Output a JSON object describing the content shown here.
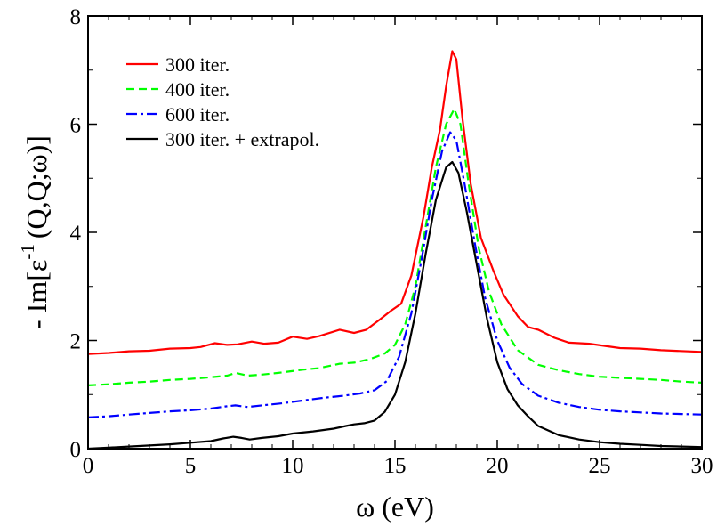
{
  "chart_data": {
    "type": "line",
    "title": "",
    "xlabel": "ω (eV)",
    "ylabel_parts": [
      "- Im[ε",
      "-1",
      "(Q,Q;ω)]"
    ],
    "xlim": [
      0,
      30
    ],
    "ylim": [
      0,
      8
    ],
    "x_ticks": [
      0,
      5,
      10,
      15,
      20,
      25,
      30
    ],
    "y_ticks": [
      0,
      2,
      4,
      6,
      8
    ],
    "grid": false,
    "legend_position": "top-left",
    "series": [
      {
        "name": "300 iter.",
        "color": "#ff0000",
        "dash": "solid",
        "points": [
          [
            0,
            1.75
          ],
          [
            1,
            1.77
          ],
          [
            2,
            1.8
          ],
          [
            3,
            1.81
          ],
          [
            4,
            1.85
          ],
          [
            5,
            1.86
          ],
          [
            5.5,
            1.88
          ],
          [
            6.2,
            1.95
          ],
          [
            6.8,
            1.92
          ],
          [
            7.3,
            1.93
          ],
          [
            8,
            1.98
          ],
          [
            8.6,
            1.94
          ],
          [
            9.3,
            1.96
          ],
          [
            10,
            2.07
          ],
          [
            10.7,
            2.03
          ],
          [
            11.3,
            2.08
          ],
          [
            12.3,
            2.2
          ],
          [
            13.0,
            2.14
          ],
          [
            13.6,
            2.2
          ],
          [
            14.3,
            2.4
          ],
          [
            14.8,
            2.55
          ],
          [
            15.3,
            2.68
          ],
          [
            15.8,
            3.2
          ],
          [
            16.4,
            4.3
          ],
          [
            16.8,
            5.2
          ],
          [
            17.2,
            5.9
          ],
          [
            17.5,
            6.7
          ],
          [
            17.8,
            7.35
          ],
          [
            18.0,
            7.2
          ],
          [
            18.3,
            6.1
          ],
          [
            18.7,
            4.9
          ],
          [
            19.2,
            3.9
          ],
          [
            19.8,
            3.3
          ],
          [
            20.3,
            2.85
          ],
          [
            21.0,
            2.45
          ],
          [
            21.5,
            2.25
          ],
          [
            22.0,
            2.2
          ],
          [
            22.8,
            2.05
          ],
          [
            23.5,
            1.96
          ],
          [
            24.5,
            1.94
          ],
          [
            26,
            1.86
          ],
          [
            27,
            1.85
          ],
          [
            28,
            1.82
          ],
          [
            30,
            1.79
          ]
        ]
      },
      {
        "name": "400 iter.",
        "color": "#00ff00",
        "dash": "dashed",
        "points": [
          [
            0,
            1.17
          ],
          [
            1,
            1.19
          ],
          [
            2,
            1.22
          ],
          [
            3,
            1.24
          ],
          [
            4,
            1.27
          ],
          [
            5,
            1.29
          ],
          [
            6,
            1.32
          ],
          [
            6.8,
            1.35
          ],
          [
            7.2,
            1.4
          ],
          [
            7.8,
            1.35
          ],
          [
            8.5,
            1.37
          ],
          [
            9.3,
            1.4
          ],
          [
            10.5,
            1.46
          ],
          [
            11.3,
            1.49
          ],
          [
            12.3,
            1.57
          ],
          [
            13.0,
            1.59
          ],
          [
            13.8,
            1.66
          ],
          [
            14.5,
            1.76
          ],
          [
            15.0,
            1.92
          ],
          [
            15.5,
            2.3
          ],
          [
            16.0,
            3.0
          ],
          [
            16.5,
            4.1
          ],
          [
            17.0,
            5.2
          ],
          [
            17.5,
            6.0
          ],
          [
            17.9,
            6.28
          ],
          [
            18.2,
            6.0
          ],
          [
            18.6,
            4.9
          ],
          [
            19.1,
            3.7
          ],
          [
            19.6,
            2.9
          ],
          [
            20.2,
            2.3
          ],
          [
            21.0,
            1.82
          ],
          [
            22.0,
            1.55
          ],
          [
            23.0,
            1.45
          ],
          [
            24,
            1.38
          ],
          [
            25,
            1.33
          ],
          [
            26,
            1.31
          ],
          [
            27,
            1.29
          ],
          [
            28,
            1.27
          ],
          [
            29,
            1.24
          ],
          [
            30,
            1.22
          ]
        ]
      },
      {
        "name": "600 iter.",
        "color": "#0000ff",
        "dash": "dashdot",
        "points": [
          [
            0,
            0.58
          ],
          [
            1,
            0.6
          ],
          [
            2,
            0.63
          ],
          [
            3,
            0.66
          ],
          [
            4,
            0.69
          ],
          [
            5,
            0.71
          ],
          [
            6,
            0.74
          ],
          [
            6.7,
            0.78
          ],
          [
            7.2,
            0.8
          ],
          [
            7.8,
            0.77
          ],
          [
            8.5,
            0.8
          ],
          [
            9.5,
            0.84
          ],
          [
            10.5,
            0.89
          ],
          [
            11.5,
            0.94
          ],
          [
            12.5,
            0.98
          ],
          [
            13.3,
            1.02
          ],
          [
            14.0,
            1.08
          ],
          [
            14.6,
            1.25
          ],
          [
            15.2,
            1.7
          ],
          [
            15.8,
            2.5
          ],
          [
            16.3,
            3.5
          ],
          [
            16.8,
            4.6
          ],
          [
            17.3,
            5.5
          ],
          [
            17.7,
            5.85
          ],
          [
            18.0,
            5.7
          ],
          [
            18.4,
            4.9
          ],
          [
            18.9,
            3.8
          ],
          [
            19.4,
            2.8
          ],
          [
            20.0,
            2.0
          ],
          [
            20.6,
            1.5
          ],
          [
            21.2,
            1.2
          ],
          [
            22.0,
            0.98
          ],
          [
            23.0,
            0.85
          ],
          [
            24,
            0.77
          ],
          [
            25,
            0.72
          ],
          [
            26,
            0.69
          ],
          [
            27,
            0.67
          ],
          [
            28,
            0.65
          ],
          [
            29,
            0.64
          ],
          [
            30,
            0.63
          ]
        ]
      },
      {
        "name": "300 iter. + extrapol.",
        "color": "#000000",
        "dash": "solid",
        "points": [
          [
            0,
            0.0
          ],
          [
            1,
            0.02
          ],
          [
            2,
            0.04
          ],
          [
            3,
            0.06
          ],
          [
            4,
            0.08
          ],
          [
            5,
            0.11
          ],
          [
            6,
            0.14
          ],
          [
            6.6,
            0.19
          ],
          [
            7.1,
            0.22
          ],
          [
            7.5,
            0.2
          ],
          [
            7.9,
            0.17
          ],
          [
            8.5,
            0.2
          ],
          [
            9.3,
            0.23
          ],
          [
            10.0,
            0.28
          ],
          [
            11.0,
            0.32
          ],
          [
            12.0,
            0.37
          ],
          [
            12.6,
            0.42
          ],
          [
            13.0,
            0.45
          ],
          [
            13.5,
            0.47
          ],
          [
            14.0,
            0.52
          ],
          [
            14.5,
            0.68
          ],
          [
            15.0,
            1.0
          ],
          [
            15.5,
            1.6
          ],
          [
            16.0,
            2.5
          ],
          [
            16.5,
            3.6
          ],
          [
            17.0,
            4.6
          ],
          [
            17.5,
            5.2
          ],
          [
            17.8,
            5.3
          ],
          [
            18.1,
            5.1
          ],
          [
            18.5,
            4.4
          ],
          [
            19.0,
            3.4
          ],
          [
            19.5,
            2.4
          ],
          [
            20.0,
            1.6
          ],
          [
            20.5,
            1.1
          ],
          [
            21.0,
            0.8
          ],
          [
            21.5,
            0.6
          ],
          [
            22.0,
            0.42
          ],
          [
            23.0,
            0.25
          ],
          [
            24,
            0.17
          ],
          [
            25,
            0.12
          ],
          [
            26,
            0.09
          ],
          [
            27,
            0.07
          ],
          [
            28,
            0.05
          ],
          [
            29,
            0.04
          ],
          [
            30,
            0.03
          ]
        ]
      }
    ]
  }
}
